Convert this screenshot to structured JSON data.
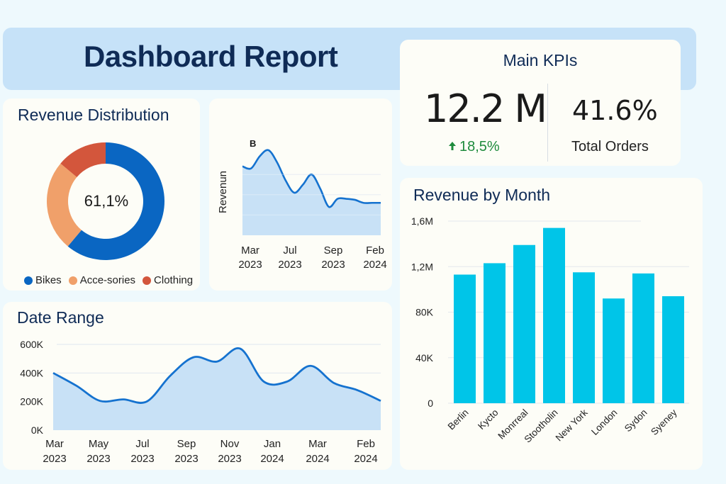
{
  "header": {
    "title": "Dashboard Report"
  },
  "kpis": {
    "title": "Main KPIs",
    "primary_value": "12.2 M",
    "primary_delta": "18,5%",
    "primary_delta_icon": "arrow-up-icon",
    "secondary_value": "41.6%",
    "secondary_label": "Total Orders"
  },
  "colors": {
    "accent_blue": "#0a66c2",
    "line_blue": "#1572cf",
    "area_fill": "#c8e1f6",
    "bar_cyan": "#00c5e8",
    "orange": "#f0a06a",
    "red": "#d3563c",
    "title_navy": "#0f2b56",
    "positive_green": "#1e8b3d"
  },
  "chart_data": [
    {
      "id": "revenue_distribution",
      "type": "pie",
      "title": "Revenue Distribution",
      "center_label": "61,1%",
      "slices": [
        {
          "label": "Bikes",
          "value": 61.1,
          "color": "#0a66c2"
        },
        {
          "label": "Acce-sories",
          "value": 25.0,
          "color": "#f0a06a"
        },
        {
          "label": "Clothing",
          "value": 13.9,
          "color": "#d3563c"
        }
      ],
      "legend": "bottom"
    },
    {
      "id": "revenue_small",
      "type": "area",
      "title": "",
      "ylabel": "Revenun",
      "annotation": "B",
      "xtick_labels": [
        [
          "Mar",
          "2023"
        ],
        [
          "Jul",
          "2023"
        ],
        [
          "Sep",
          "2023"
        ],
        [
          "Feb",
          "2024"
        ]
      ],
      "x": [
        0,
        0.5,
        1,
        1.5,
        2,
        2.5,
        3,
        3.5,
        4,
        4.5,
        5,
        5.5,
        6,
        6.5,
        7,
        7.5,
        8
      ],
      "values": [
        3.4,
        3.3,
        3.9,
        4.2,
        3.6,
        2.7,
        2.1,
        2.5,
        3.0,
        2.3,
        1.4,
        1.8,
        1.8,
        1.75,
        1.6,
        1.6,
        1.6
      ],
      "ylim": [
        0,
        5
      ],
      "grid": true
    },
    {
      "id": "date_range",
      "type": "area",
      "title": "Date Range",
      "ytick_labels": [
        "0K",
        "200K",
        "400K",
        "600K"
      ],
      "ylim": [
        0,
        600000
      ],
      "xtick_labels": [
        [
          "Mar",
          "2023"
        ],
        [
          "May",
          "2023"
        ],
        [
          "Jul",
          "2023"
        ],
        [
          "Sep",
          "2023"
        ],
        [
          "Nov",
          "2023"
        ],
        [
          "Jan",
          "2024"
        ],
        [
          "Mar",
          "2024"
        ],
        [
          "Feb",
          "2024"
        ]
      ],
      "x": [
        0,
        0.5,
        1,
        1.5,
        2,
        2.5,
        3,
        3.5,
        4,
        4.5,
        5,
        5.5,
        6,
        6.5,
        7
      ],
      "values": [
        400000,
        310000,
        205000,
        215000,
        200000,
        380000,
        510000,
        480000,
        570000,
        340000,
        340000,
        450000,
        330000,
        280000,
        205000
      ],
      "grid": true
    },
    {
      "id": "revenue_by_month",
      "type": "bar",
      "title": "Revenue by Month",
      "categories": [
        "Berlin",
        "Kycto",
        "Monrreal",
        "Stootholin",
        "New York",
        "London",
        "Sydon",
        "Syeney"
      ],
      "values": [
        1.13,
        1.23,
        1.39,
        1.54,
        1.15,
        0.92,
        1.14,
        0.94
      ],
      "value_units": "M (approx, read against axis ticks)",
      "ytick_labels": [
        "0",
        "40K",
        "80K",
        "1,2M",
        "1,6M"
      ],
      "ylim": [
        0,
        1.6
      ],
      "grid": true,
      "bar_color": "#00c5e8"
    }
  ]
}
